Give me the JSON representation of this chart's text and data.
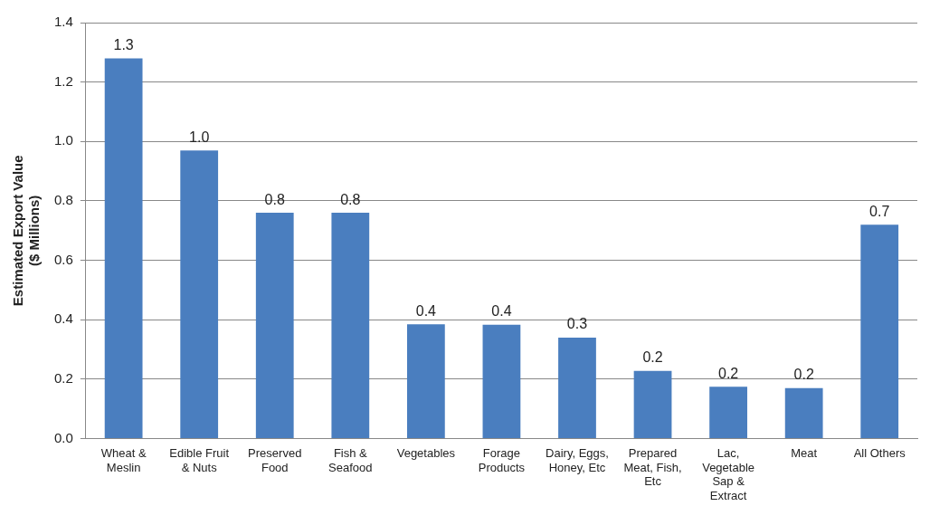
{
  "chart_data": {
    "type": "bar",
    "ylabel": "Estimated Export Value\n($ Millions)",
    "categories": [
      "Wheat & Meslin",
      "Edible Fruit & Nuts",
      "Preserved Food",
      "Fish & Seafood",
      "Vegetables",
      "Forage Products",
      "Dairy, Eggs, Honey, Etc",
      "Prepared Meat, Fish, Etc",
      "Lac, Vegetable Sap & Extract",
      "Meat",
      "All Others"
    ],
    "values": [
      1.28,
      0.97,
      0.76,
      0.76,
      0.385,
      0.383,
      0.34,
      0.228,
      0.175,
      0.17,
      0.72
    ],
    "value_labels": [
      "1.3",
      "1.0",
      "0.8",
      "0.8",
      "0.4",
      "0.4",
      "0.3",
      "0.2",
      "0.2",
      "0.2",
      "0.7"
    ],
    "color": "#4a7ebf",
    "ylim": [
      0,
      1.4
    ],
    "yticks": [
      {
        "value": 0,
        "label": "0.0"
      },
      {
        "value": 0.2,
        "label": "0.2"
      },
      {
        "value": 0.4,
        "label": "0.4"
      },
      {
        "value": 0.6,
        "label": "0.6"
      },
      {
        "value": 0.8,
        "label": "0.8"
      },
      {
        "value": 1,
        "label": "1.0"
      },
      {
        "value": 1.2,
        "label": "1.2"
      },
      {
        "value": 1.4,
        "label": "1.4"
      }
    ],
    "grid": "y",
    "legend": false
  }
}
